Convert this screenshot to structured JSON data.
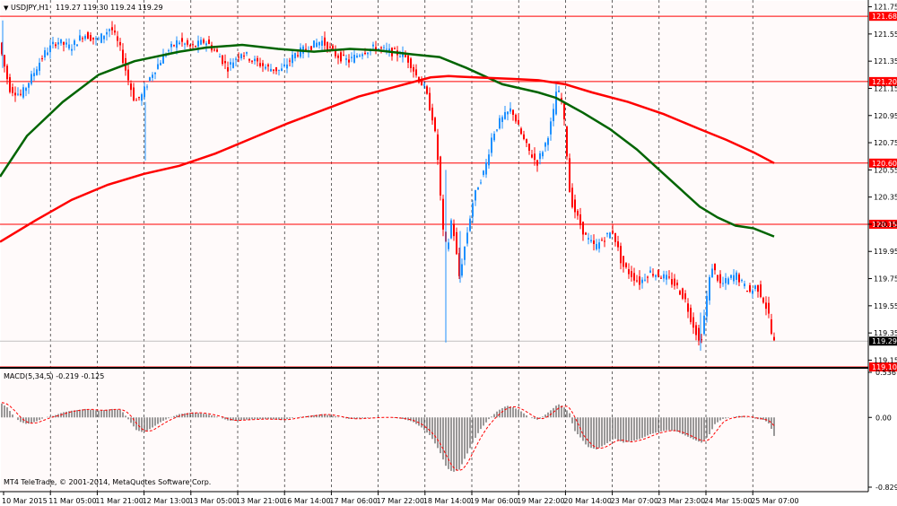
{
  "header": {
    "symbol": "USDJPY,H1",
    "ohlc": "119.27 119.30 119.24 119.29"
  },
  "indicator": {
    "label": "MACD(5,34,5) -0.219 -0.125"
  },
  "copyright": "MT4 TeleTrade, © 2001-2014, MetaQuotes Software Corp.",
  "colors": {
    "background": "#fffafa",
    "bull": "#1e90ff",
    "bear": "#ff0000",
    "ma_fast": "#006400",
    "ma_slow": "#ff0000",
    "level_line": "#ff0000",
    "macd_hist": "#808080",
    "macd_signal": "#ff0000"
  },
  "chart_data": [
    {
      "type": "candlestick",
      "symbol": "USDJPY",
      "timeframe": "H1",
      "ylim": [
        119.1,
        121.8
      ],
      "y_ticks": [
        "121.75",
        "121.55",
        "121.35",
        "121.15",
        "120.95",
        "120.75",
        "120.55",
        "120.35",
        "120.15",
        "119.95",
        "119.75",
        "119.55",
        "119.35",
        "119.15"
      ],
      "x_labels": [
        "10 Mar 2015",
        "11 Mar 05:00",
        "11 Mar 21:00",
        "12 Mar 13:00",
        "13 Mar 05:00",
        "13 Mar 21:00",
        "16 Mar 14:00",
        "17 Mar 06:00",
        "17 Mar 22:00",
        "18 Mar 14:00",
        "19 Mar 06:00",
        "19 Mar 22:00",
        "20 Mar 14:00",
        "23 Mar 07:00",
        "23 Mar 23:00",
        "24 Mar 15:00",
        "25 Mar 07:00"
      ],
      "price_levels": [
        {
          "value": 121.68,
          "label": "121.68"
        },
        {
          "value": 121.2,
          "label": "121.20"
        },
        {
          "value": 120.6,
          "label": "120.60"
        },
        {
          "value": 120.15,
          "label": "120.15"
        },
        {
          "value": 119.1,
          "label": "119.10"
        }
      ],
      "current_price": {
        "value": 119.29,
        "label": "119.29"
      },
      "moving_averages": [
        {
          "color": "#006400",
          "points": [
            [
              0,
              120.5
            ],
            [
              30,
              120.8
            ],
            [
              70,
              121.05
            ],
            [
              110,
              121.25
            ],
            [
              150,
              121.35
            ],
            [
              200,
              121.42
            ],
            [
              230,
              121.45
            ],
            [
              270,
              121.47
            ],
            [
              310,
              121.44
            ],
            [
              350,
              121.42
            ],
            [
              390,
              121.44
            ],
            [
              420,
              121.43
            ],
            [
              460,
              121.4
            ],
            [
              490,
              121.38
            ],
            [
              520,
              121.3
            ],
            [
              560,
              121.18
            ],
            [
              600,
              121.12
            ],
            [
              620,
              121.08
            ],
            [
              650,
              120.97
            ],
            [
              680,
              120.85
            ],
            [
              710,
              120.7
            ],
            [
              730,
              120.58
            ],
            [
              760,
              120.4
            ],
            [
              780,
              120.28
            ],
            [
              800,
              120.2
            ],
            [
              820,
              120.14
            ],
            [
              840,
              120.12
            ],
            [
              863,
              120.06
            ]
          ]
        },
        {
          "color": "#ff0000",
          "points": [
            [
              0,
              120.02
            ],
            [
              40,
              120.18
            ],
            [
              80,
              120.33
            ],
            [
              120,
              120.44
            ],
            [
              160,
              120.52
            ],
            [
              200,
              120.58
            ],
            [
              240,
              120.67
            ],
            [
              280,
              120.78
            ],
            [
              320,
              120.89
            ],
            [
              360,
              120.99
            ],
            [
              400,
              121.09
            ],
            [
              440,
              121.16
            ],
            [
              480,
              121.23
            ],
            [
              500,
              121.24
            ],
            [
              530,
              121.23
            ],
            [
              570,
              121.22
            ],
            [
              600,
              121.21
            ],
            [
              630,
              121.18
            ],
            [
              660,
              121.12
            ],
            [
              700,
              121.05
            ],
            [
              740,
              120.96
            ],
            [
              780,
              120.85
            ],
            [
              810,
              120.77
            ],
            [
              840,
              120.68
            ],
            [
              863,
              120.6
            ]
          ]
        }
      ],
      "candles_path": [
        [
          0,
          121.5
        ],
        [
          12,
          121.15
        ],
        [
          25,
          121.1
        ],
        [
          38,
          121.25
        ],
        [
          50,
          121.4
        ],
        [
          65,
          121.5
        ],
        [
          80,
          121.45
        ],
        [
          95,
          121.55
        ],
        [
          110,
          121.5
        ],
        [
          125,
          121.6
        ],
        [
          135,
          121.45
        ],
        [
          145,
          121.2
        ],
        [
          152,
          121.05
        ],
        [
          160,
          121.1
        ],
        [
          170,
          121.25
        ],
        [
          185,
          121.4
        ],
        [
          200,
          121.5
        ],
        [
          215,
          121.45
        ],
        [
          230,
          121.5
        ],
        [
          245,
          121.4
        ],
        [
          255,
          121.3
        ],
        [
          270,
          121.42
        ],
        [
          285,
          121.35
        ],
        [
          300,
          121.3
        ],
        [
          315,
          121.28
        ],
        [
          330,
          121.4
        ],
        [
          345,
          121.45
        ],
        [
          360,
          121.5
        ],
        [
          375,
          121.4
        ],
        [
          390,
          121.35
        ],
        [
          405,
          121.42
        ],
        [
          420,
          121.45
        ],
        [
          435,
          121.42
        ],
        [
          450,
          121.4
        ],
        [
          458,
          121.35
        ],
        [
          465,
          121.25
        ],
        [
          475,
          121.15
        ],
        [
          485,
          120.9
        ],
        [
          490,
          120.6
        ],
        [
          495,
          120.1
        ],
        [
          500,
          119.95
        ],
        [
          505,
          120.2
        ],
        [
          510,
          119.95
        ],
        [
          513,
          119.75
        ],
        [
          520,
          120.0
        ],
        [
          528,
          120.3
        ],
        [
          535,
          120.45
        ],
        [
          542,
          120.55
        ],
        [
          550,
          120.8
        ],
        [
          558,
          120.9
        ],
        [
          565,
          120.95
        ],
        [
          572,
          121.0
        ],
        [
          580,
          120.85
        ],
        [
          590,
          120.7
        ],
        [
          600,
          120.6
        ],
        [
          610,
          120.75
        ],
        [
          618,
          120.95
        ],
        [
          622,
          121.15
        ],
        [
          628,
          121.05
        ],
        [
          632,
          120.8
        ],
        [
          637,
          120.35
        ],
        [
          645,
          120.2
        ],
        [
          655,
          120.05
        ],
        [
          665,
          119.98
        ],
        [
          675,
          120.05
        ],
        [
          685,
          120.1
        ],
        [
          695,
          119.85
        ],
        [
          705,
          119.78
        ],
        [
          715,
          119.72
        ],
        [
          725,
          119.8
        ],
        [
          735,
          119.78
        ],
        [
          745,
          119.75
        ],
        [
          755,
          119.7
        ],
        [
          765,
          119.6
        ],
        [
          772,
          119.45
        ],
        [
          778,
          119.35
        ],
        [
          782,
          119.25
        ],
        [
          788,
          119.55
        ],
        [
          795,
          119.85
        ],
        [
          805,
          119.7
        ],
        [
          815,
          119.75
        ],
        [
          822,
          119.78
        ],
        [
          830,
          119.7
        ],
        [
          838,
          119.65
        ],
        [
          845,
          119.7
        ],
        [
          852,
          119.6
        ],
        [
          858,
          119.5
        ],
        [
          863,
          119.28
        ]
      ]
    },
    {
      "type": "bar",
      "name": "MACD(5,34,5)",
      "main_value": "-0.219",
      "signal_value": "-0.125",
      "ylim": [
        -0.829,
        0.536
      ],
      "y_ticks": [
        "0.536",
        "0.00",
        "-0.829"
      ],
      "histogram_path": [
        [
          0,
          0.18
        ],
        [
          8,
          0.12
        ],
        [
          15,
          0.02
        ],
        [
          22,
          -0.05
        ],
        [
          30,
          -0.08
        ],
        [
          40,
          -0.05
        ],
        [
          50,
          0.0
        ],
        [
          60,
          0.02
        ],
        [
          70,
          0.06
        ],
        [
          80,
          0.08
        ],
        [
          95,
          0.1
        ],
        [
          110,
          0.08
        ],
        [
          125,
          0.1
        ],
        [
          135,
          0.09
        ],
        [
          145,
          -0.05
        ],
        [
          152,
          -0.15
        ],
        [
          160,
          -0.18
        ],
        [
          170,
          -0.12
        ],
        [
          180,
          -0.05
        ],
        [
          190,
          0.0
        ],
        [
          200,
          0.04
        ],
        [
          215,
          0.06
        ],
        [
          230,
          0.04
        ],
        [
          245,
          0.0
        ],
        [
          255,
          -0.04
        ],
        [
          270,
          -0.03
        ],
        [
          285,
          -0.02
        ],
        [
          300,
          -0.02
        ],
        [
          315,
          -0.03
        ],
        [
          330,
          0.0
        ],
        [
          345,
          0.02
        ],
        [
          360,
          0.04
        ],
        [
          375,
          0.01
        ],
        [
          390,
          -0.02
        ],
        [
          405,
          -0.01
        ],
        [
          420,
          0.0
        ],
        [
          435,
          0.0
        ],
        [
          450,
          -0.02
        ],
        [
          460,
          -0.05
        ],
        [
          470,
          -0.12
        ],
        [
          480,
          -0.22
        ],
        [
          490,
          -0.4
        ],
        [
          498,
          -0.6
        ],
        [
          505,
          -0.65
        ],
        [
          512,
          -0.62
        ],
        [
          520,
          -0.45
        ],
        [
          528,
          -0.28
        ],
        [
          535,
          -0.15
        ],
        [
          545,
          -0.02
        ],
        [
          555,
          0.08
        ],
        [
          565,
          0.14
        ],
        [
          572,
          0.12
        ],
        [
          580,
          0.08
        ],
        [
          590,
          0.0
        ],
        [
          600,
          -0.03
        ],
        [
          610,
          0.05
        ],
        [
          618,
          0.12
        ],
        [
          622,
          0.16
        ],
        [
          628,
          0.13
        ],
        [
          635,
          0.05
        ],
        [
          640,
          -0.15
        ],
        [
          648,
          -0.25
        ],
        [
          655,
          -0.35
        ],
        [
          665,
          -0.38
        ],
        [
          675,
          -0.32
        ],
        [
          685,
          -0.25
        ],
        [
          695,
          -0.3
        ],
        [
          705,
          -0.28
        ],
        [
          715,
          -0.25
        ],
        [
          725,
          -0.2
        ],
        [
          735,
          -0.17
        ],
        [
          745,
          -0.15
        ],
        [
          755,
          -0.17
        ],
        [
          765,
          -0.22
        ],
        [
          775,
          -0.27
        ],
        [
          782,
          -0.3
        ],
        [
          790,
          -0.22
        ],
        [
          797,
          -0.08
        ],
        [
          805,
          -0.02
        ],
        [
          815,
          0.0
        ],
        [
          825,
          0.02
        ],
        [
          835,
          0.0
        ],
        [
          845,
          -0.02
        ],
        [
          852,
          -0.03
        ],
        [
          858,
          -0.08
        ],
        [
          863,
          -0.22
        ]
      ]
    }
  ]
}
